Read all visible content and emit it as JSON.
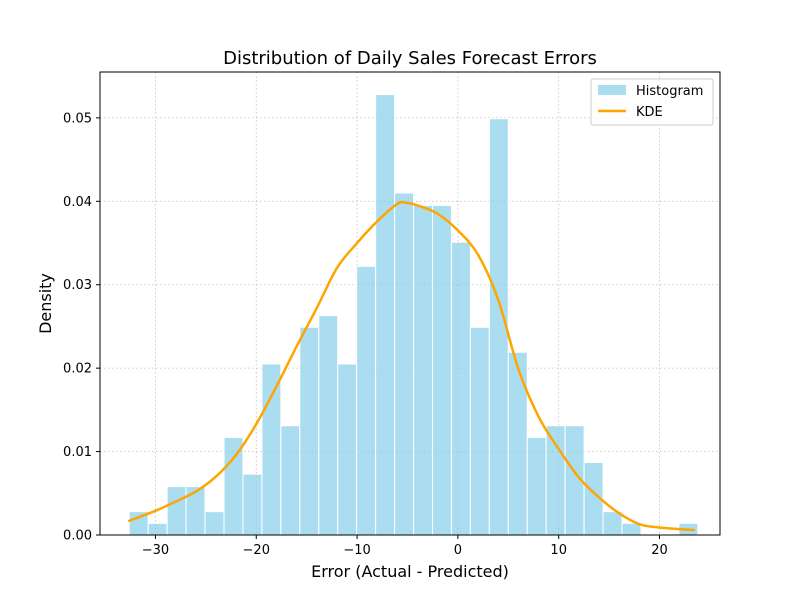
{
  "chart_data": {
    "type": "bar",
    "title": "Distribution of Daily Sales Forecast Errors",
    "xlabel": "Error (Actual - Predicted)",
    "ylabel": "Density",
    "xlim": [
      -35.5,
      26.0
    ],
    "ylim": [
      0,
      0.0555
    ],
    "xticks": [
      -30,
      -20,
      -10,
      0,
      10,
      20
    ],
    "xtick_labels": [
      "−30",
      "−20",
      "−10",
      "0",
      "10",
      "20"
    ],
    "yticks": [
      0.0,
      0.01,
      0.02,
      0.03,
      0.04,
      0.05
    ],
    "ytick_labels": [
      "0.00",
      "0.01",
      "0.02",
      "0.03",
      "0.04",
      "0.05"
    ],
    "grid": true,
    "legend_position": "top-right",
    "series": [
      {
        "name": "Histogram",
        "kind": "histogram",
        "color": "#87ceeb",
        "bin_edges": [
          -32.6,
          -30.72,
          -28.84,
          -26.96,
          -25.08,
          -23.2,
          -21.32,
          -19.44,
          -17.56,
          -15.68,
          -13.8,
          -11.92,
          -10.04,
          -8.16,
          -6.28,
          -4.4,
          -2.52,
          -0.64,
          1.24,
          3.12,
          5.0,
          6.88,
          8.76,
          10.64,
          12.52,
          14.4,
          16.28,
          18.16,
          20.04,
          21.92,
          23.8
        ],
        "values": [
          0.0028,
          0.0014,
          0.0058,
          0.0058,
          0.0028,
          0.0117,
          0.0073,
          0.0205,
          0.0131,
          0.0249,
          0.0263,
          0.0205,
          0.0322,
          0.0528,
          0.041,
          0.0395,
          0.0395,
          0.0351,
          0.0249,
          0.0499,
          0.0219,
          0.0117,
          0.0131,
          0.0131,
          0.0087,
          0.0028,
          0.0014,
          0.0,
          0.0,
          0.0014
        ]
      },
      {
        "name": "KDE",
        "kind": "line",
        "color": "#ffa500",
        "x": [
          -32.6,
          -30,
          -28,
          -26,
          -24,
          -22,
          -20,
          -18,
          -16,
          -14,
          -12,
          -10,
          -8,
          -6,
          -5,
          -4,
          -2,
          0,
          2,
          4,
          6,
          8,
          10,
          12,
          14,
          16,
          18,
          20,
          22,
          23.4
        ],
        "y": [
          0.0017,
          0.0029,
          0.004,
          0.0052,
          0.007,
          0.0096,
          0.0133,
          0.0178,
          0.0226,
          0.0272,
          0.032,
          0.035,
          0.0376,
          0.0397,
          0.0398,
          0.0395,
          0.0385,
          0.0365,
          0.0336,
          0.0282,
          0.0199,
          0.0142,
          0.0103,
          0.0069,
          0.0045,
          0.0026,
          0.0013,
          0.0009,
          0.0007,
          0.0006
        ]
      }
    ]
  }
}
